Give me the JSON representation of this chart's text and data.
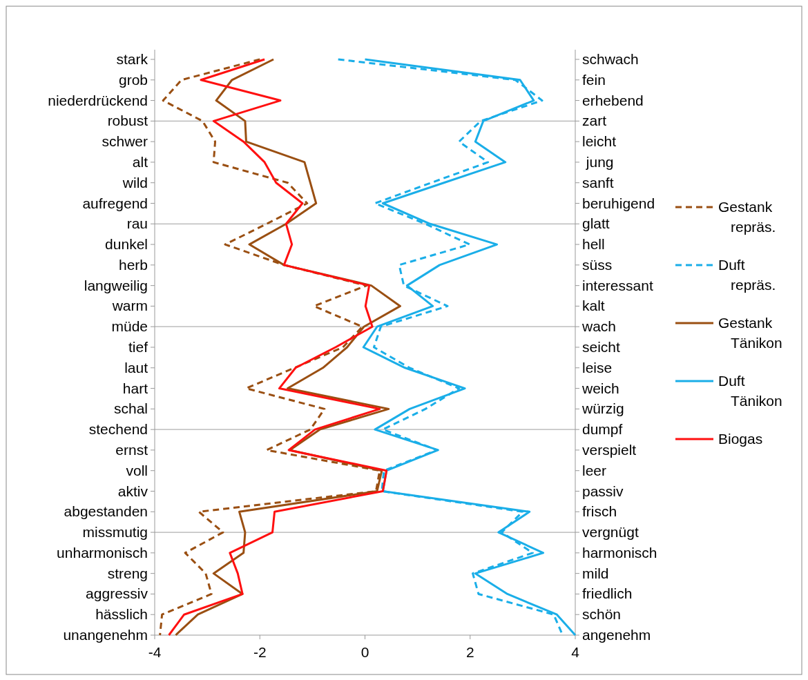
{
  "chart_data": {
    "type": "line",
    "orientation": "horizontal",
    "categories": [
      "stark",
      "grob",
      "niederdrückend",
      "robust",
      "schwer",
      "alt",
      "wild",
      "aufregend",
      "rau",
      "dunkel",
      "herb",
      "langweilig",
      "warm",
      "müde",
      "tief",
      "laut",
      "hart",
      "schal",
      "stechend",
      "ernst",
      "voll",
      "aktiv",
      "abgestanden",
      "missmutig",
      "unharmonisch",
      "streng",
      "aggressiv",
      "hässlich",
      "unangenehm"
    ],
    "y2_categories": [
      "schwach",
      "fein",
      "erhebend",
      "zart",
      "leicht",
      " jung",
      "sanft",
      "beruhigend",
      "glatt",
      "hell",
      "süss",
      "interessant",
      "kalt",
      "wach",
      "seicht",
      "leise",
      "weich",
      "würzig",
      "dumpf",
      "verspielt",
      "leer",
      "passiv",
      "frisch",
      "vergnügt",
      "harmonisch",
      "mild",
      "friedlich",
      "schön",
      "angenehm"
    ],
    "xlim": [
      -4,
      4
    ],
    "xticks": [
      -4,
      -2,
      0,
      2,
      4
    ],
    "ref_lines": [
      {
        "axis": "y",
        "value": "robust",
        "color": "#b0b0b0"
      },
      {
        "axis": "y",
        "value": "rau",
        "color": "#b0b0b0"
      },
      {
        "axis": "y",
        "value": "müde",
        "color": "#b0b0b0"
      },
      {
        "axis": "y",
        "value": "stechend",
        "color": "#b0b0b0"
      },
      {
        "axis": "y",
        "value": "missmutig",
        "color": "#b0b0b0"
      }
    ],
    "legend": "right",
    "series": [
      {
        "name": "Gestank repräs.",
        "color": "#9a4f12",
        "line_style": "dashed",
        "values": [
          -2.0,
          -3.49,
          -3.84,
          -3.09,
          -2.85,
          -2.88,
          -1.47,
          -1.1,
          -1.87,
          -2.66,
          -1.54,
          0.03,
          -0.97,
          -0.05,
          -0.42,
          -1.34,
          -2.26,
          -0.77,
          -1.04,
          -1.87,
          0.28,
          0.21,
          -3.16,
          -2.7,
          -3.42,
          -3.03,
          -2.92,
          -3.86,
          -3.9
        ]
      },
      {
        "name": "Duft repräs.",
        "color": "#1aaee8",
        "line_style": "dashed",
        "values": [
          -0.51,
          2.86,
          3.37,
          2.2,
          1.79,
          2.34,
          1.26,
          0.19,
          1.15,
          1.99,
          0.65,
          0.74,
          1.57,
          0.3,
          0.17,
          0.85,
          1.79,
          1.15,
          0.34,
          1.37,
          0.36,
          0.32,
          3.0,
          2.6,
          3.19,
          2.05,
          2.16,
          3.59,
          3.76
        ]
      },
      {
        "name": "Gestank Tänikon",
        "color": "#9a4f12",
        "line_style": "solid",
        "values": [
          -1.74,
          -2.53,
          -2.83,
          -2.28,
          -2.26,
          -1.15,
          -1.04,
          -0.93,
          -1.5,
          -2.2,
          -1.54,
          0.12,
          0.67,
          -0.02,
          -0.34,
          -0.8,
          -1.47,
          0.45,
          -0.86,
          -1.43,
          0.32,
          0.23,
          -2.39,
          -2.28,
          -2.31,
          -2.88,
          -2.33,
          -3.18,
          -3.6
        ]
      },
      {
        "name": "Duft Tänikon",
        "color": "#1aaee8",
        "line_style": "solid",
        "values": [
          0.0,
          2.95,
          3.21,
          2.25,
          2.1,
          2.67,
          1.5,
          0.34,
          1.24,
          2.51,
          1.42,
          0.8,
          1.29,
          0.23,
          -0.03,
          0.76,
          1.9,
          0.85,
          0.19,
          1.39,
          0.41,
          0.34,
          3.13,
          2.54,
          3.39,
          2.1,
          2.71,
          3.65,
          4.0
        ]
      },
      {
        "name": "Biogas",
        "color": "#ff1010",
        "line_style": "solid",
        "values": [
          -1.91,
          -3.12,
          -1.61,
          -2.88,
          -2.31,
          -1.91,
          -1.69,
          -1.19,
          -1.5,
          -1.39,
          -1.54,
          0.08,
          0.01,
          0.14,
          -0.56,
          -1.32,
          -1.63,
          0.28,
          -0.95,
          -1.45,
          0.41,
          0.34,
          -1.72,
          -1.76,
          -2.57,
          -2.42,
          -2.33,
          -3.44,
          -3.73
        ]
      }
    ]
  }
}
